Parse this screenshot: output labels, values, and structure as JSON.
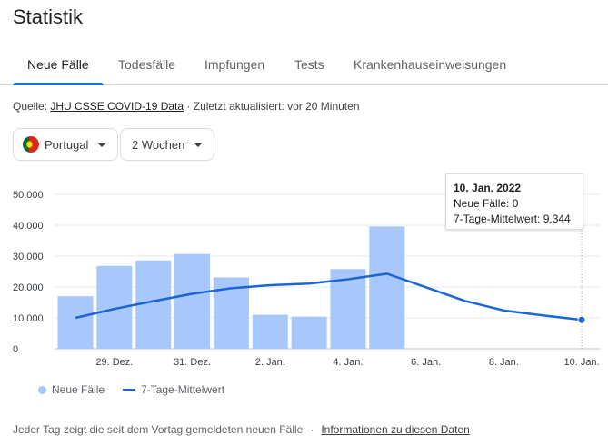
{
  "title": "Statistik",
  "tabs": [
    "Neue Fälle",
    "Todesfälle",
    "Impfungen",
    "Tests",
    "Krankenhauseinweisungen"
  ],
  "active_tab": 0,
  "source": {
    "prefix": "Quelle: ",
    "link": "JHU CSSE COVID-19 Data",
    "suffix": " · Zuletzt aktualisiert: vor 20 Minuten"
  },
  "filters": {
    "country": "Portugal",
    "country_flag_icon": "portugal-flag-icon",
    "range": "2 Wochen"
  },
  "tooltip": {
    "date": "10. Jan. 2022",
    "new_cases": "Neue Fälle: 0",
    "avg": "7-Tage-Mittelwert: 9.344"
  },
  "legend": {
    "bars": "Neue Fälle",
    "line": "7-Tage-Mittelwert"
  },
  "footer": {
    "text": "Jeder Tag zeigt die seit dem Vortag gemeldeten neuen Fälle",
    "separator": "·",
    "link": "Informationen zu diesen Daten"
  },
  "colors": {
    "bar": "#a8c7fa",
    "line": "#1967d2",
    "accent": "#1a73e8"
  },
  "chart_data": {
    "type": "bar",
    "days": 14,
    "ylim": [
      0,
      50000
    ],
    "yticks": [
      0,
      10000,
      20000,
      30000,
      40000,
      50000
    ],
    "ytick_labels": [
      "0",
      "10.000",
      "20.000",
      "30.000",
      "40.000",
      "50.000"
    ],
    "xtick_labels": [
      {
        "day": 2,
        "label": "29. Dez."
      },
      {
        "day": 4,
        "label": "31. Dez."
      },
      {
        "day": 6,
        "label": "2. Jan."
      },
      {
        "day": 8,
        "label": "4. Jan."
      },
      {
        "day": 10,
        "label": "6. Jan."
      },
      {
        "day": 12,
        "label": "8. Jan."
      },
      {
        "day": 14,
        "label": "10. Jan."
      }
    ],
    "series": [
      {
        "name": "Neue Fälle",
        "type": "bar",
        "values": [
          17000,
          26800,
          28600,
          30700,
          23100,
          11000,
          10400,
          25800,
          39600,
          0,
          0,
          0,
          0,
          0
        ]
      },
      {
        "name": "7-Tage-Mittelwert",
        "type": "line",
        "values": [
          10000,
          12900,
          15400,
          17800,
          19600,
          20600,
          21100,
          22500,
          24300,
          19900,
          15500,
          12400,
          10800,
          9344
        ]
      }
    ],
    "grid": true,
    "highlight_day": 14
  }
}
